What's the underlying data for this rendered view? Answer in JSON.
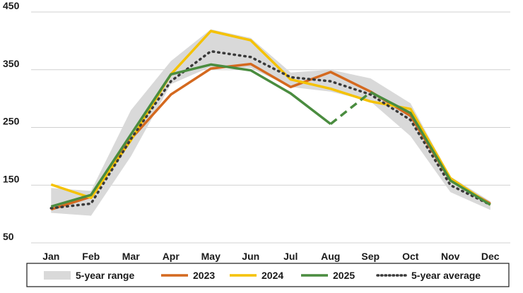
{
  "chart_data": {
    "type": "line",
    "title": "",
    "xlabel": "",
    "ylabel": "",
    "categories": [
      "Jan",
      "Feb",
      "Mar",
      "Apr",
      "May",
      "Jun",
      "Jul",
      "Aug",
      "Sep",
      "Oct",
      "Nov",
      "Dec"
    ],
    "ylim": [
      50,
      450
    ],
    "yticks": [
      50,
      150,
      250,
      350,
      450
    ],
    "grid": true,
    "legend_position": "bottom",
    "range": {
      "name": "5-year range",
      "color": "#d9d9d9",
      "low": [
        102,
        97,
        200,
        325,
        355,
        353,
        320,
        312,
        295,
        235,
        138,
        107
      ],
      "high": [
        145,
        140,
        280,
        365,
        420,
        405,
        345,
        350,
        335,
        292,
        165,
        122
      ]
    },
    "series": [
      {
        "name": "2023",
        "color": "#d4691f",
        "style": "solid",
        "values": [
          108,
          130,
          230,
          307,
          352,
          360,
          320,
          346,
          312,
          270,
          158,
          118
        ]
      },
      {
        "name": "2024",
        "color": "#f5c200",
        "style": "solid",
        "values": [
          151,
          128,
          228,
          342,
          417,
          401,
          333,
          317,
          295,
          282,
          162,
          116
        ]
      },
      {
        "name": "2025",
        "color": "#4a8c3f",
        "style": "solid",
        "dashed_from_index": 7,
        "values": [
          113,
          133,
          238,
          342,
          359,
          349,
          309,
          256,
          311,
          275,
          158,
          116
        ]
      },
      {
        "name": "5-year average",
        "color": "#3a3a3a",
        "style": "dotted",
        "values": [
          110,
          118,
          230,
          330,
          382,
          372,
          337,
          330,
          307,
          263,
          150,
          116
        ]
      }
    ]
  }
}
